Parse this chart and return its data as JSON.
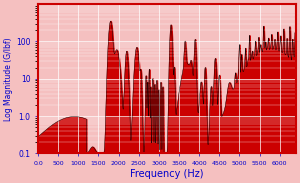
{
  "title": "",
  "xlabel": "Frequency (Hz)",
  "ylabel": "Log Magnitude (G/lbf)",
  "xlim": [
    0,
    6400
  ],
  "ylim_log": [
    0.1,
    1000
  ],
  "background_color": "#f5c0c0",
  "plot_bg_color": "#f5c0c0",
  "fill_color": "#cc0000",
  "line_color": "#000000",
  "axis_label_color": "#0000cc",
  "tick_color": "#0000cc",
  "xticks": [
    0,
    500,
    1000,
    1500,
    2000,
    2500,
    3000,
    3500,
    4000,
    4500,
    5000,
    5500,
    6000
  ],
  "xtick_labels": [
    "0.0",
    "500",
    "1000",
    "1500",
    "2000",
    "2500",
    "3000",
    "3500",
    "4000",
    "4500",
    "5000",
    "5500",
    "6000"
  ],
  "yticks": [
    0.1,
    1.0,
    10,
    100
  ],
  "ytick_labels": [
    "0.1",
    "1.0",
    "10",
    "100"
  ]
}
